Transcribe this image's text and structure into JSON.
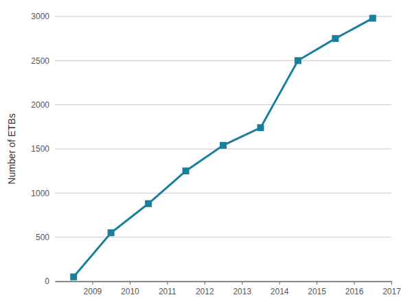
{
  "chart_data": {
    "type": "line",
    "y_label": "Number of ETBs",
    "x": [
      2008.5,
      2009.5,
      2010.5,
      2011.5,
      2012.5,
      2013.5,
      2014.5,
      2015.5,
      2016.5
    ],
    "series": [
      {
        "name": "Number of ETBs",
        "color": "#1a7f9c",
        "marker": "square",
        "line_style": "solid",
        "values": [
          50,
          550,
          880,
          1250,
          1540,
          1740,
          2500,
          2750,
          2980
        ]
      }
    ],
    "xlim": [
      2008,
      2017
    ],
    "xticks": [
      2009,
      2010,
      2011,
      2012,
      2013,
      2014,
      2015,
      2016,
      2017
    ],
    "ylim": [
      0,
      3000
    ],
    "yticks": [
      0,
      500,
      1000,
      1500,
      2000,
      2500,
      3000
    ],
    "grid": true
  }
}
